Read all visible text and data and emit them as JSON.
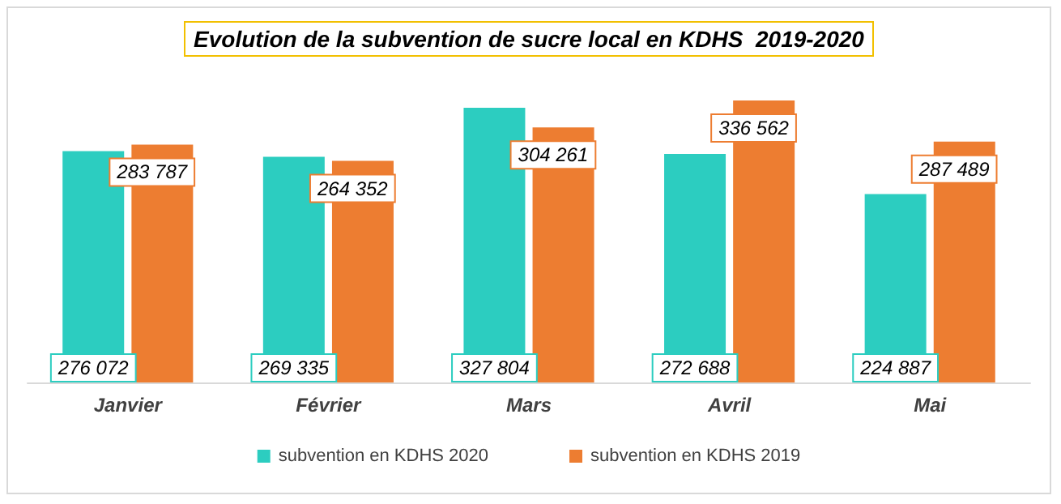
{
  "chart_data": {
    "type": "bar",
    "title": "Evolution de la subvention de sucre local en KDHS  2019-2020",
    "categories": [
      "Janvier",
      "Février",
      "Mars",
      "Avril",
      "Mai"
    ],
    "series": [
      {
        "name": "subvention en KDHS 2020",
        "color": "#2ccdc0",
        "values": [
          276072,
          269335,
          327804,
          272688,
          224887
        ],
        "value_labels": [
          "276 072",
          "269 335",
          "327 804",
          "272 688",
          "224 887"
        ]
      },
      {
        "name": "subvention en KDHS 2019",
        "color": "#ed7d31",
        "values": [
          283787,
          264352,
          304261,
          336562,
          287489
        ],
        "value_labels": [
          "283 787",
          "264 352",
          "304 261",
          "336 562",
          "287 489"
        ]
      }
    ],
    "legend": "bottom"
  }
}
